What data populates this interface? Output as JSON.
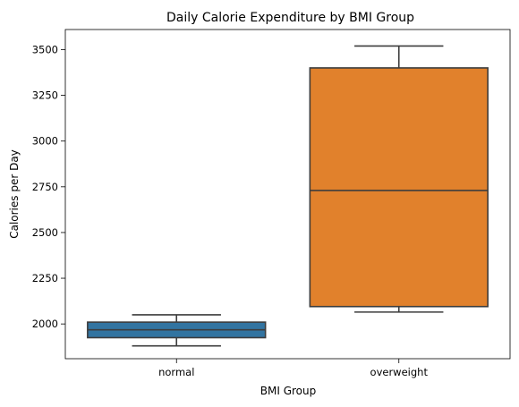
{
  "chart_data": {
    "type": "box",
    "title": "Daily Calorie Expenditure by BMI Group",
    "xlabel": "BMI Group",
    "ylabel": "Calories per Day",
    "categories": [
      "normal",
      "overweight"
    ],
    "boxes": [
      {
        "category": "normal",
        "whisker_low": 1880,
        "q1": 1925,
        "median": 1968,
        "q3": 2010,
        "whisker_high": 2050,
        "color": "#3274a1"
      },
      {
        "category": "overweight",
        "whisker_low": 2065,
        "q1": 2095,
        "median": 2730,
        "q3": 3400,
        "whisker_high": 3520,
        "color": "#e1812c"
      }
    ],
    "ylim": [
      1810,
      3610
    ],
    "yticks": [
      2000,
      2250,
      2500,
      2750,
      3000,
      3250,
      3500
    ],
    "grid": false,
    "legend": "none"
  }
}
